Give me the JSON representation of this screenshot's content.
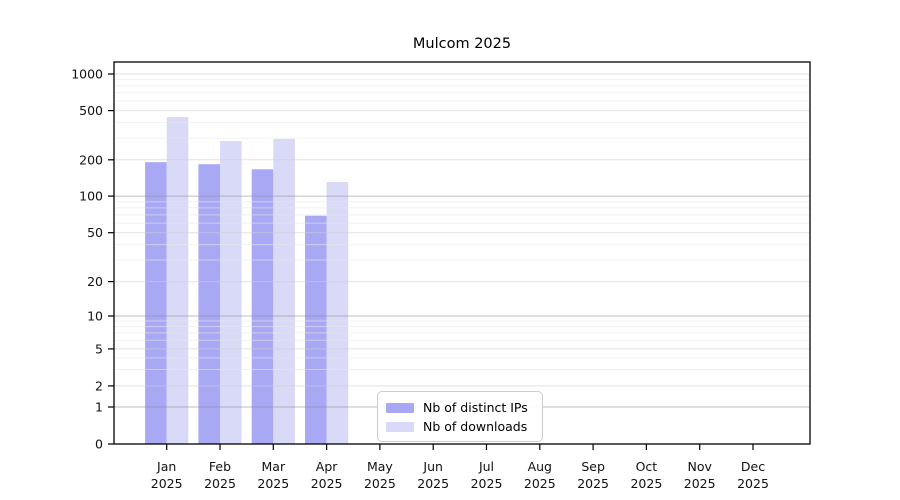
{
  "figure": {
    "background": "#ffffff",
    "text_color": "#000000"
  },
  "chart_data": {
    "type": "bar",
    "title": "Mulcom 2025",
    "months": [
      "Jan",
      "Feb",
      "Mar",
      "Apr",
      "May",
      "Jun",
      "Jul",
      "Aug",
      "Sep",
      "Oct",
      "Nov",
      "Dec"
    ],
    "year": "2025",
    "series": [
      {
        "name": "Nb of distinct IPs",
        "color": "#a8a8f5",
        "values": [
          191,
          184,
          167,
          69,
          0,
          0,
          0,
          0,
          0,
          0,
          0,
          0
        ]
      },
      {
        "name": "Nb of downloads",
        "color": "#d9d9f8",
        "values": [
          444,
          284,
          295,
          131,
          0,
          0,
          0,
          0,
          0,
          0,
          0,
          0
        ]
      }
    ],
    "yticks": [
      0,
      1,
      2,
      5,
      10,
      20,
      50,
      100,
      200,
      500,
      1000
    ],
    "ylim": [
      0,
      1000
    ],
    "xlabel": "",
    "ylabel": "",
    "yscale": "log-like",
    "grid": "horizontal",
    "legend": {
      "position": "inside-bottom-center",
      "labels": [
        "Nb of distinct IPs",
        "Nb of downloads"
      ]
    }
  }
}
